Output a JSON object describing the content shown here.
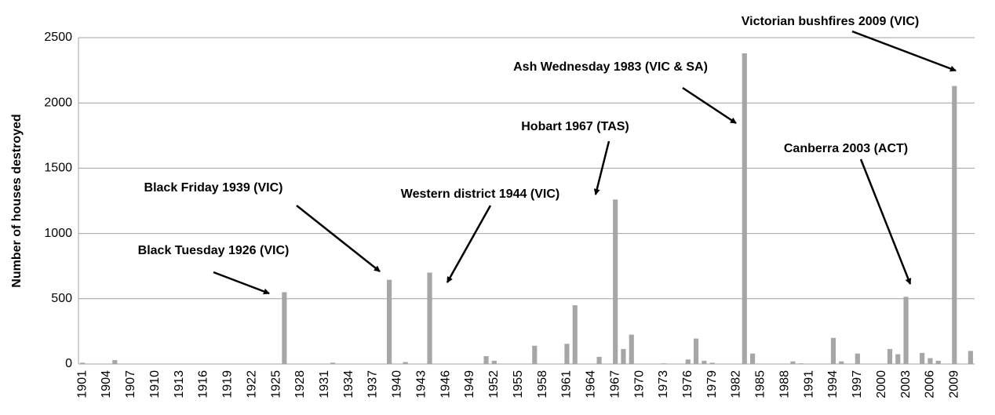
{
  "chart_data": {
    "type": "bar",
    "y_label": "Number of houses destroyed",
    "categories": [
      "1901",
      null,
      null,
      "1904",
      null,
      null,
      "1907",
      null,
      null,
      "1910",
      null,
      null,
      "1913",
      null,
      null,
      "1916",
      null,
      null,
      "1919",
      null,
      null,
      "1922",
      null,
      null,
      "1925",
      null,
      null,
      "1928",
      null,
      null,
      "1931",
      null,
      null,
      "1934",
      null,
      null,
      "1937",
      null,
      null,
      "1940",
      null,
      null,
      "1943",
      null,
      null,
      "1946",
      null,
      null,
      "1949",
      null,
      null,
      "1952",
      null,
      null,
      "1955",
      null,
      null,
      "1958",
      null,
      null,
      "1961",
      null,
      null,
      "1964",
      null,
      null,
      "1967",
      null,
      null,
      "1970",
      null,
      null,
      "1973",
      null,
      null,
      "1976",
      null,
      null,
      "1979",
      null,
      null,
      "1982",
      null,
      null,
      "1985",
      null,
      null,
      "1988",
      null,
      null,
      "1991",
      null,
      null,
      "1994",
      null,
      null,
      "1997",
      null,
      null,
      "2000",
      null,
      null,
      "2003",
      null,
      null,
      "2006",
      null,
      null,
      "2009",
      null,
      null
    ],
    "values": [
      10,
      0,
      0,
      0,
      30,
      0,
      0,
      0,
      0,
      0,
      0,
      0,
      0,
      0,
      0,
      0,
      0,
      0,
      0,
      0,
      0,
      0,
      0,
      0,
      0,
      550,
      0,
      0,
      0,
      0,
      0,
      10,
      0,
      0,
      0,
      0,
      0,
      0,
      645,
      0,
      15,
      0,
      0,
      700,
      0,
      0,
      0,
      0,
      0,
      0,
      60,
      25,
      0,
      0,
      0,
      0,
      140,
      0,
      0,
      0,
      155,
      450,
      0,
      0,
      55,
      0,
      1260,
      115,
      225,
      0,
      0,
      0,
      5,
      0,
      0,
      35,
      195,
      25,
      10,
      0,
      0,
      0,
      2380,
      80,
      0,
      0,
      0,
      0,
      20,
      5,
      0,
      0,
      0,
      200,
      20,
      0,
      80,
      0,
      0,
      0,
      115,
      75,
      515,
      0,
      85,
      45,
      25,
      0,
      2130,
      0,
      100
    ],
    "color": "#a6a6a6",
    "ylim": [
      0,
      2500
    ],
    "yticks": [
      0,
      500,
      1000,
      1500,
      2000,
      2500
    ],
    "grid": true,
    "annotations": [
      "Victorian bushfires 2009 (VIC)",
      "Ash Wednesday 1983 (VIC & SA)",
      "Hobart 1967 (TAS)",
      "Canberra 2003 (ACT)",
      "Black Friday 1939 (VIC)",
      "Western district 1944 (VIC)",
      "Black Tuesday 1926 (VIC)"
    ]
  }
}
